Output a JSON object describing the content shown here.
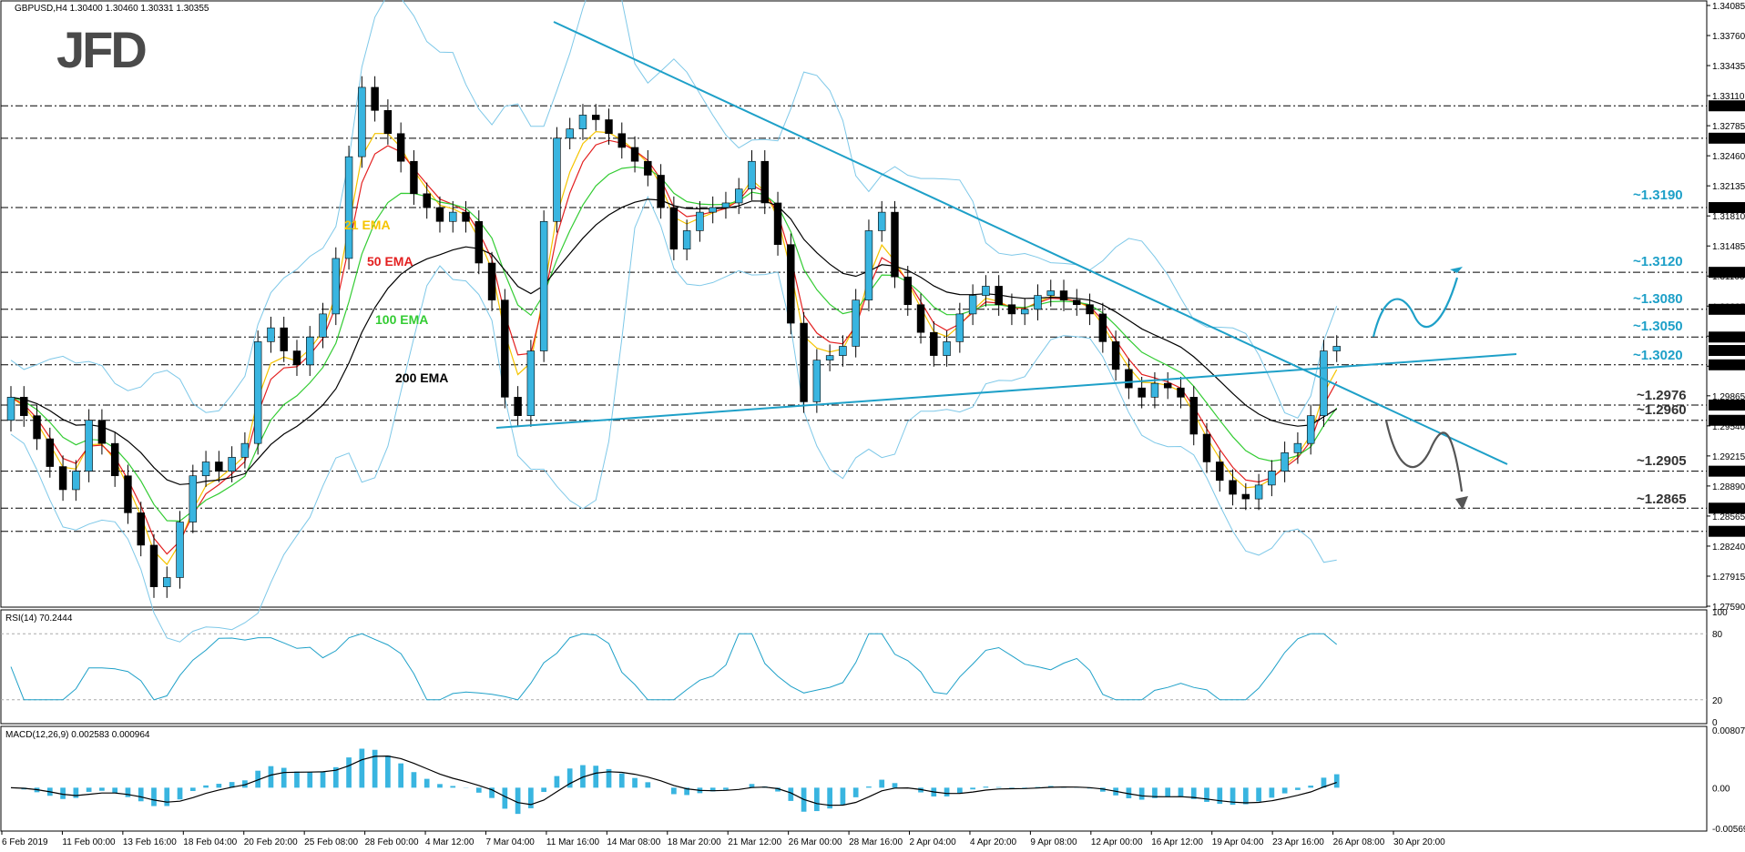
{
  "chart_data": {
    "type": "candlestick",
    "symbol_header": "GBPUSD,H4  1.30400 1.30460 1.30331 1.30355",
    "logo": "JFD",
    "price_axis": {
      "range": [
        1.2759,
        1.34085
      ],
      "ticks": [
        "1.34085",
        "1.33760",
        "1.33435",
        "1.33110",
        "1.32785",
        "1.32460",
        "1.32135",
        "1.31810",
        "1.31485",
        "1.31160",
        "1.30835",
        "1.30510",
        "1.30185",
        "1.29865",
        "1.29540",
        "1.29215",
        "1.28890",
        "1.28565",
        "1.28240",
        "1.27915",
        "1.27590"
      ]
    },
    "time_axis": [
      "6 Feb 2019",
      "11 Feb 00:00",
      "13 Feb 16:00",
      "18 Feb 04:00",
      "20 Feb 20:00",
      "25 Feb 08:00",
      "28 Feb 00:00",
      "4 Mar 12:00",
      "7 Mar 04:00",
      "11 Mar 16:00",
      "14 Mar 08:00",
      "18 Mar 20:00",
      "21 Mar 12:00",
      "26 Mar 00:00",
      "28 Mar 16:00",
      "2 Apr 04:00",
      "4 Apr 20:00",
      "9 Apr 08:00",
      "12 Apr 00:00",
      "16 Apr 12:00",
      "19 Apr 04:00",
      "23 Apr 16:00",
      "26 Apr 08:00",
      "30 Apr 20:00"
    ],
    "candles": [
      [
        1.296,
        1.2985
      ],
      [
        1.2985,
        1.2965
      ],
      [
        1.2965,
        1.294
      ],
      [
        1.294,
        1.291
      ],
      [
        1.291,
        1.2885
      ],
      [
        1.2885,
        1.2905
      ],
      [
        1.2905,
        1.296
      ],
      [
        1.296,
        1.2935
      ],
      [
        1.2935,
        1.29
      ],
      [
        1.29,
        1.286
      ],
      [
        1.286,
        1.2825
      ],
      [
        1.2825,
        1.278
      ],
      [
        1.278,
        1.279
      ],
      [
        1.279,
        1.285
      ],
      [
        1.285,
        1.29
      ],
      [
        1.29,
        1.2915
      ],
      [
        1.2915,
        1.2905
      ],
      [
        1.2905,
        1.292
      ],
      [
        1.292,
        1.2935
      ],
      [
        1.2935,
        1.3045
      ],
      [
        1.3045,
        1.306
      ],
      [
        1.306,
        1.3035
      ],
      [
        1.3035,
        1.302
      ],
      [
        1.302,
        1.305
      ],
      [
        1.305,
        1.3075
      ],
      [
        1.3075,
        1.3135
      ],
      [
        1.3135,
        1.3245
      ],
      [
        1.3245,
        1.332
      ],
      [
        1.332,
        1.3295
      ],
      [
        1.3295,
        1.327
      ],
      [
        1.327,
        1.324
      ],
      [
        1.324,
        1.3205
      ],
      [
        1.3205,
        1.319
      ],
      [
        1.319,
        1.3175
      ],
      [
        1.3175,
        1.3185
      ],
      [
        1.3185,
        1.3175
      ],
      [
        1.3175,
        1.313
      ],
      [
        1.313,
        1.309
      ],
      [
        1.309,
        1.2985
      ],
      [
        1.2985,
        1.2965
      ],
      [
        1.2965,
        1.3035
      ],
      [
        1.3035,
        1.3175
      ],
      [
        1.3175,
        1.3265
      ],
      [
        1.3265,
        1.3275
      ],
      [
        1.3275,
        1.329
      ],
      [
        1.329,
        1.3285
      ],
      [
        1.3285,
        1.327
      ],
      [
        1.327,
        1.3255
      ],
      [
        1.3255,
        1.324
      ],
      [
        1.324,
        1.3225
      ],
      [
        1.3225,
        1.319
      ],
      [
        1.319,
        1.3145
      ],
      [
        1.3145,
        1.3165
      ],
      [
        1.3165,
        1.3185
      ],
      [
        1.3185,
        1.319
      ],
      [
        1.319,
        1.3195
      ],
      [
        1.3195,
        1.321
      ],
      [
        1.321,
        1.324
      ],
      [
        1.324,
        1.3195
      ],
      [
        1.3195,
        1.315
      ],
      [
        1.315,
        1.3065
      ],
      [
        1.3065,
        1.298
      ],
      [
        1.298,
        1.3025
      ],
      [
        1.3025,
        1.303
      ],
      [
        1.303,
        1.304
      ],
      [
        1.304,
        1.309
      ],
      [
        1.309,
        1.3165
      ],
      [
        1.3165,
        1.3185
      ],
      [
        1.3185,
        1.3115
      ],
      [
        1.3115,
        1.3085
      ],
      [
        1.3085,
        1.3055
      ],
      [
        1.3055,
        1.303
      ],
      [
        1.303,
        1.3045
      ],
      [
        1.3045,
        1.3075
      ],
      [
        1.3075,
        1.3095
      ],
      [
        1.3095,
        1.3105
      ],
      [
        1.3105,
        1.3085
      ],
      [
        1.3085,
        1.3075
      ],
      [
        1.3075,
        1.308
      ],
      [
        1.308,
        1.3095
      ],
      [
        1.3095,
        1.31
      ],
      [
        1.31,
        1.309
      ],
      [
        1.309,
        1.3085
      ],
      [
        1.3085,
        1.3075
      ],
      [
        1.3075,
        1.3045
      ],
      [
        1.3045,
        1.3015
      ],
      [
        1.3015,
        1.2995
      ],
      [
        1.2995,
        1.2985
      ],
      [
        1.2985,
        1.3
      ],
      [
        1.3,
        1.2995
      ],
      [
        1.2995,
        1.2985
      ],
      [
        1.2985,
        1.2945
      ],
      [
        1.2945,
        1.2915
      ],
      [
        1.2915,
        1.2895
      ],
      [
        1.2895,
        1.288
      ],
      [
        1.288,
        1.2875
      ],
      [
        1.2875,
        1.289
      ],
      [
        1.289,
        1.2905
      ],
      [
        1.2905,
        1.2925
      ],
      [
        1.2925,
        1.2935
      ],
      [
        1.2935,
        1.2965
      ],
      [
        1.2965,
        1.3035
      ],
      [
        1.3035,
        1.304
      ]
    ],
    "series": [
      {
        "name": "21 EMA",
        "color": "#f5c400"
      },
      {
        "name": "50 EMA",
        "color": "#e32020"
      },
      {
        "name": "100 EMA",
        "color": "#33cc33"
      },
      {
        "name": "200 EMA",
        "color": "#000000"
      }
    ],
    "ema_labels": [
      "21 EMA",
      "50 EMA",
      "100 EMA",
      "200 EMA"
    ],
    "hlines": [
      {
        "price": 1.33,
        "tag": "1.33000"
      },
      {
        "price": 1.3265,
        "tag": "1.32650"
      },
      {
        "price": 1.319,
        "tag": "1.31900"
      },
      {
        "price": 1.312,
        "tag": "1.31200"
      },
      {
        "price": 1.308,
        "tag": "1.30800"
      },
      {
        "price": 1.305,
        "tag": "1.30500"
      },
      {
        "price": 1.302,
        "tag": "1.30200"
      },
      {
        "price": 1.29765,
        "tag": "1.29765"
      },
      {
        "price": 1.296,
        "tag": "1.29600"
      },
      {
        "price": 1.2905,
        "tag": "1.29050"
      },
      {
        "price": 1.2865,
        "tag": "1.28650"
      },
      {
        "price": 1.284,
        "tag": "1.28400"
      }
    ],
    "current_price_tag": "1.30355",
    "level_annotations": [
      "~1.3190",
      "~1.3120",
      "~1.3080",
      "~1.3050",
      "~1.3020",
      "~1.2976",
      "~1.2960",
      "~1.2905",
      "~1.2865"
    ],
    "annotation_color": "#1ea0c8",
    "rsi": {
      "header": "RSI(14) 70.2444",
      "ticks": [
        "100",
        "80",
        "20",
        "0"
      ],
      "last": 70.24
    },
    "macd": {
      "header": "MACD(12,26,9) 0.002583 0.000964",
      "ticks": [
        "0.008075",
        "0.00",
        "-0.005691"
      ],
      "range": [
        -0.005691,
        0.008075
      ]
    }
  }
}
